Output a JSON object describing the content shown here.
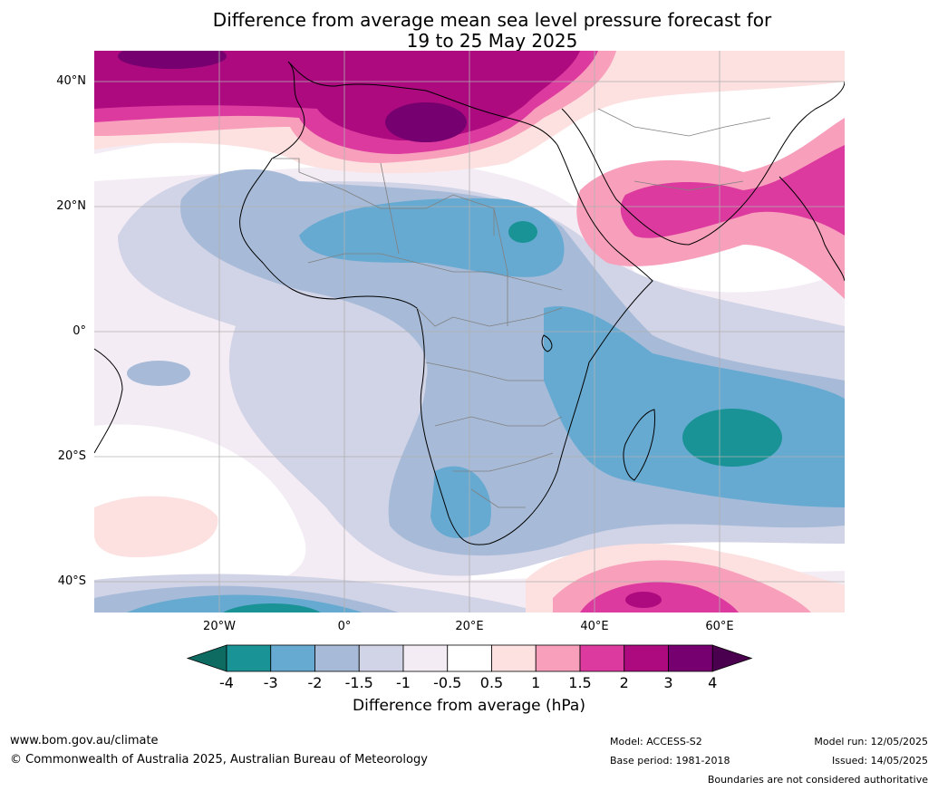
{
  "title": {
    "line1": "Difference from average mean sea level pressure forecast for",
    "line2": "19 to 25 May 2025"
  },
  "map": {
    "lat_labels": [
      "40°N",
      "20°N",
      "0°",
      "20°S",
      "40°S"
    ],
    "lon_labels": [
      "20°W",
      "0°",
      "20°E",
      "40°E",
      "60°E"
    ]
  },
  "colorbar": {
    "ticks": [
      "-4",
      "-3",
      "-2",
      "-1.5",
      "-1",
      "-0.5",
      "0.5",
      "1",
      "1.5",
      "2",
      "3",
      "4"
    ],
    "colors": [
      "#0d6b62",
      "#1a9396",
      "#67aad1",
      "#a7bbd8",
      "#d1d3e6",
      "#f3ecf4",
      "#ffffff",
      "#fde0e0",
      "#f89fbb",
      "#dc3a9e",
      "#ad0a80",
      "#76006f",
      "#4a004f"
    ],
    "label": "Difference from average (hPa)"
  },
  "footer": {
    "website": "www.bom.gov.au/climate",
    "copyright": "© Commonwealth of Australia 2025, Australian Bureau of Meteorology",
    "model": "Model: ACCESS-S2",
    "base_period": "Base period: 1981-2018",
    "model_run": "Model run: 12/05/2025",
    "issued": "Issued: 14/05/2025",
    "disclaimer": "Boundaries are not considered authoritative"
  }
}
